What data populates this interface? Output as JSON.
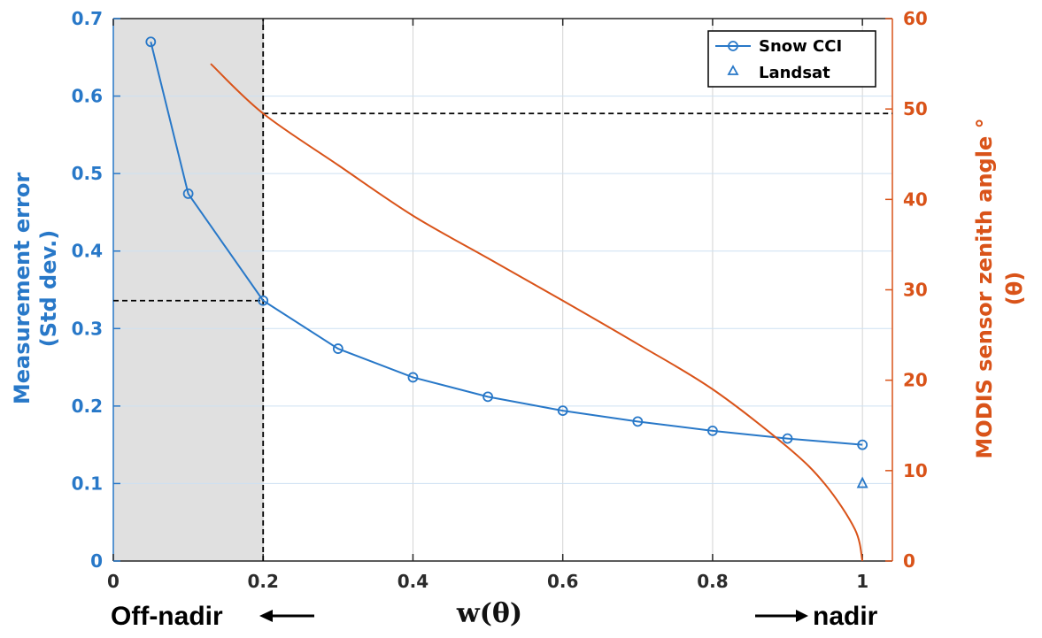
{
  "chart_data": {
    "type": "line",
    "xlabel": "w(θ)",
    "ylabel_left": [
      "Measurement error",
      "(Std dev.)"
    ],
    "ylabel_right": [
      "MODIS sensor zenith angle °",
      "(θ)"
    ],
    "xlim": [
      0,
      1.04
    ],
    "ylim_left": [
      0,
      0.7
    ],
    "ylim_right": [
      0,
      60
    ],
    "x_ticks": [
      0,
      0.2,
      0.4,
      0.6,
      0.8,
      1
    ],
    "x_tick_labels": [
      "0",
      "0.2",
      "0.4",
      "0.6",
      "0.8",
      "1"
    ],
    "y_left_ticks": [
      0,
      0.1,
      0.2,
      0.3,
      0.4,
      0.5,
      0.6,
      0.7
    ],
    "y_left_tick_labels": [
      "0",
      "0.1",
      "0.2",
      "0.3",
      "0.4",
      "0.5",
      "0.6",
      "0.7"
    ],
    "y_right_ticks": [
      0,
      10,
      20,
      30,
      40,
      50,
      60
    ],
    "y_right_tick_labels": [
      "0",
      "10",
      "20",
      "30",
      "40",
      "50",
      "60"
    ],
    "grid": true,
    "legend_position": "top-right",
    "shaded_region": {
      "x": [
        0,
        0.2
      ],
      "color": "#e0e0e0"
    },
    "reference_lines": [
      {
        "orientation": "vertical",
        "x": 0.2,
        "y_left_range": [
          0,
          0.7
        ]
      },
      {
        "orientation": "horizontal",
        "y_left": 0.336,
        "x_range": [
          0,
          0.2
        ]
      },
      {
        "orientation": "horizontal",
        "y_right": 49.5,
        "x_range": [
          0.2,
          1.04
        ]
      }
    ],
    "series": [
      {
        "name": "Snow CCI",
        "axis": "left",
        "marker": "circle",
        "color": "#2878c8",
        "x": [
          0.05,
          0.1,
          0.2,
          0.3,
          0.4,
          0.5,
          0.6,
          0.7,
          0.8,
          0.9,
          1.0
        ],
        "y": [
          0.67,
          0.474,
          0.336,
          0.274,
          0.237,
          0.212,
          0.194,
          0.18,
          0.168,
          0.158,
          0.15
        ]
      },
      {
        "name": "Landsat",
        "axis": "left",
        "marker": "triangle",
        "color": "#2878c8",
        "x": [
          1.0
        ],
        "y": [
          0.101
        ]
      },
      {
        "axis": "right",
        "color": "#d95319",
        "marker": "none",
        "x": [
          0.13,
          0.2,
          0.3,
          0.4,
          0.5,
          0.6,
          0.7,
          0.8,
          0.9,
          0.95,
          0.99,
          1.0
        ],
        "y": [
          55,
          49.5,
          43.8,
          38.2,
          33.5,
          28.8,
          24.0,
          19.0,
          12.6,
          8.5,
          3.5,
          0
        ]
      }
    ]
  },
  "annotations": {
    "left_direction": "Off-nadir",
    "right_direction": "nadir"
  }
}
